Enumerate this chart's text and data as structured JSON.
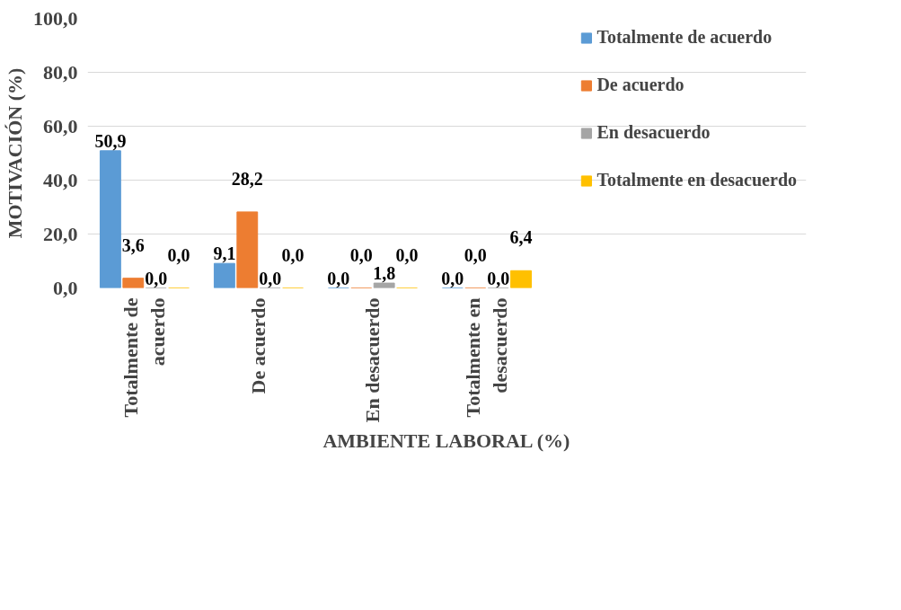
{
  "chart_data": {
    "type": "bar",
    "xlabel": "AMBIENTE LABORAL (%)",
    "ylabel": "MOTIVACIÓN (%)",
    "categories": [
      "Totalmente de acuerdo",
      "De acuerdo",
      "En desacuerdo",
      "Totalmente en desacuerdo"
    ],
    "series": [
      {
        "name": "Totalmente de acuerdo",
        "color": "#5b9bd5",
        "values": [
          50.9,
          9.1,
          0.0,
          0.0
        ],
        "value_labels": [
          "50,9",
          "9,1",
          "0,0",
          "0,0"
        ]
      },
      {
        "name": "De acuerdo",
        "color": "#ed7d31",
        "values": [
          3.6,
          28.2,
          0.0,
          0.0
        ],
        "value_labels": [
          "3,6",
          "28,2",
          "0,0",
          "0,0"
        ]
      },
      {
        "name": "En desacuerdo",
        "color": "#a5a5a5",
        "values": [
          0.0,
          0.0,
          1.8,
          0.0
        ],
        "value_labels": [
          "0,0",
          "0,0",
          "1,8",
          "0,0"
        ]
      },
      {
        "name": "Totalmente en desacuerdo",
        "color": "#ffc000",
        "values": [
          0.0,
          0.0,
          0.0,
          6.4
        ],
        "value_labels": [
          "0,0",
          "0,0",
          "0,0",
          "6,4"
        ]
      }
    ],
    "ylim": [
      0,
      100
    ],
    "yticks": [
      {
        "value": 0,
        "label": "0,0"
      },
      {
        "value": 20,
        "label": "20,0"
      },
      {
        "value": 40,
        "label": "40,0"
      },
      {
        "value": 60,
        "label": "60,0"
      },
      {
        "value": 80,
        "label": "80,0"
      },
      {
        "value": 100,
        "label": "100,0"
      }
    ],
    "grid": "y",
    "legend": "right"
  }
}
